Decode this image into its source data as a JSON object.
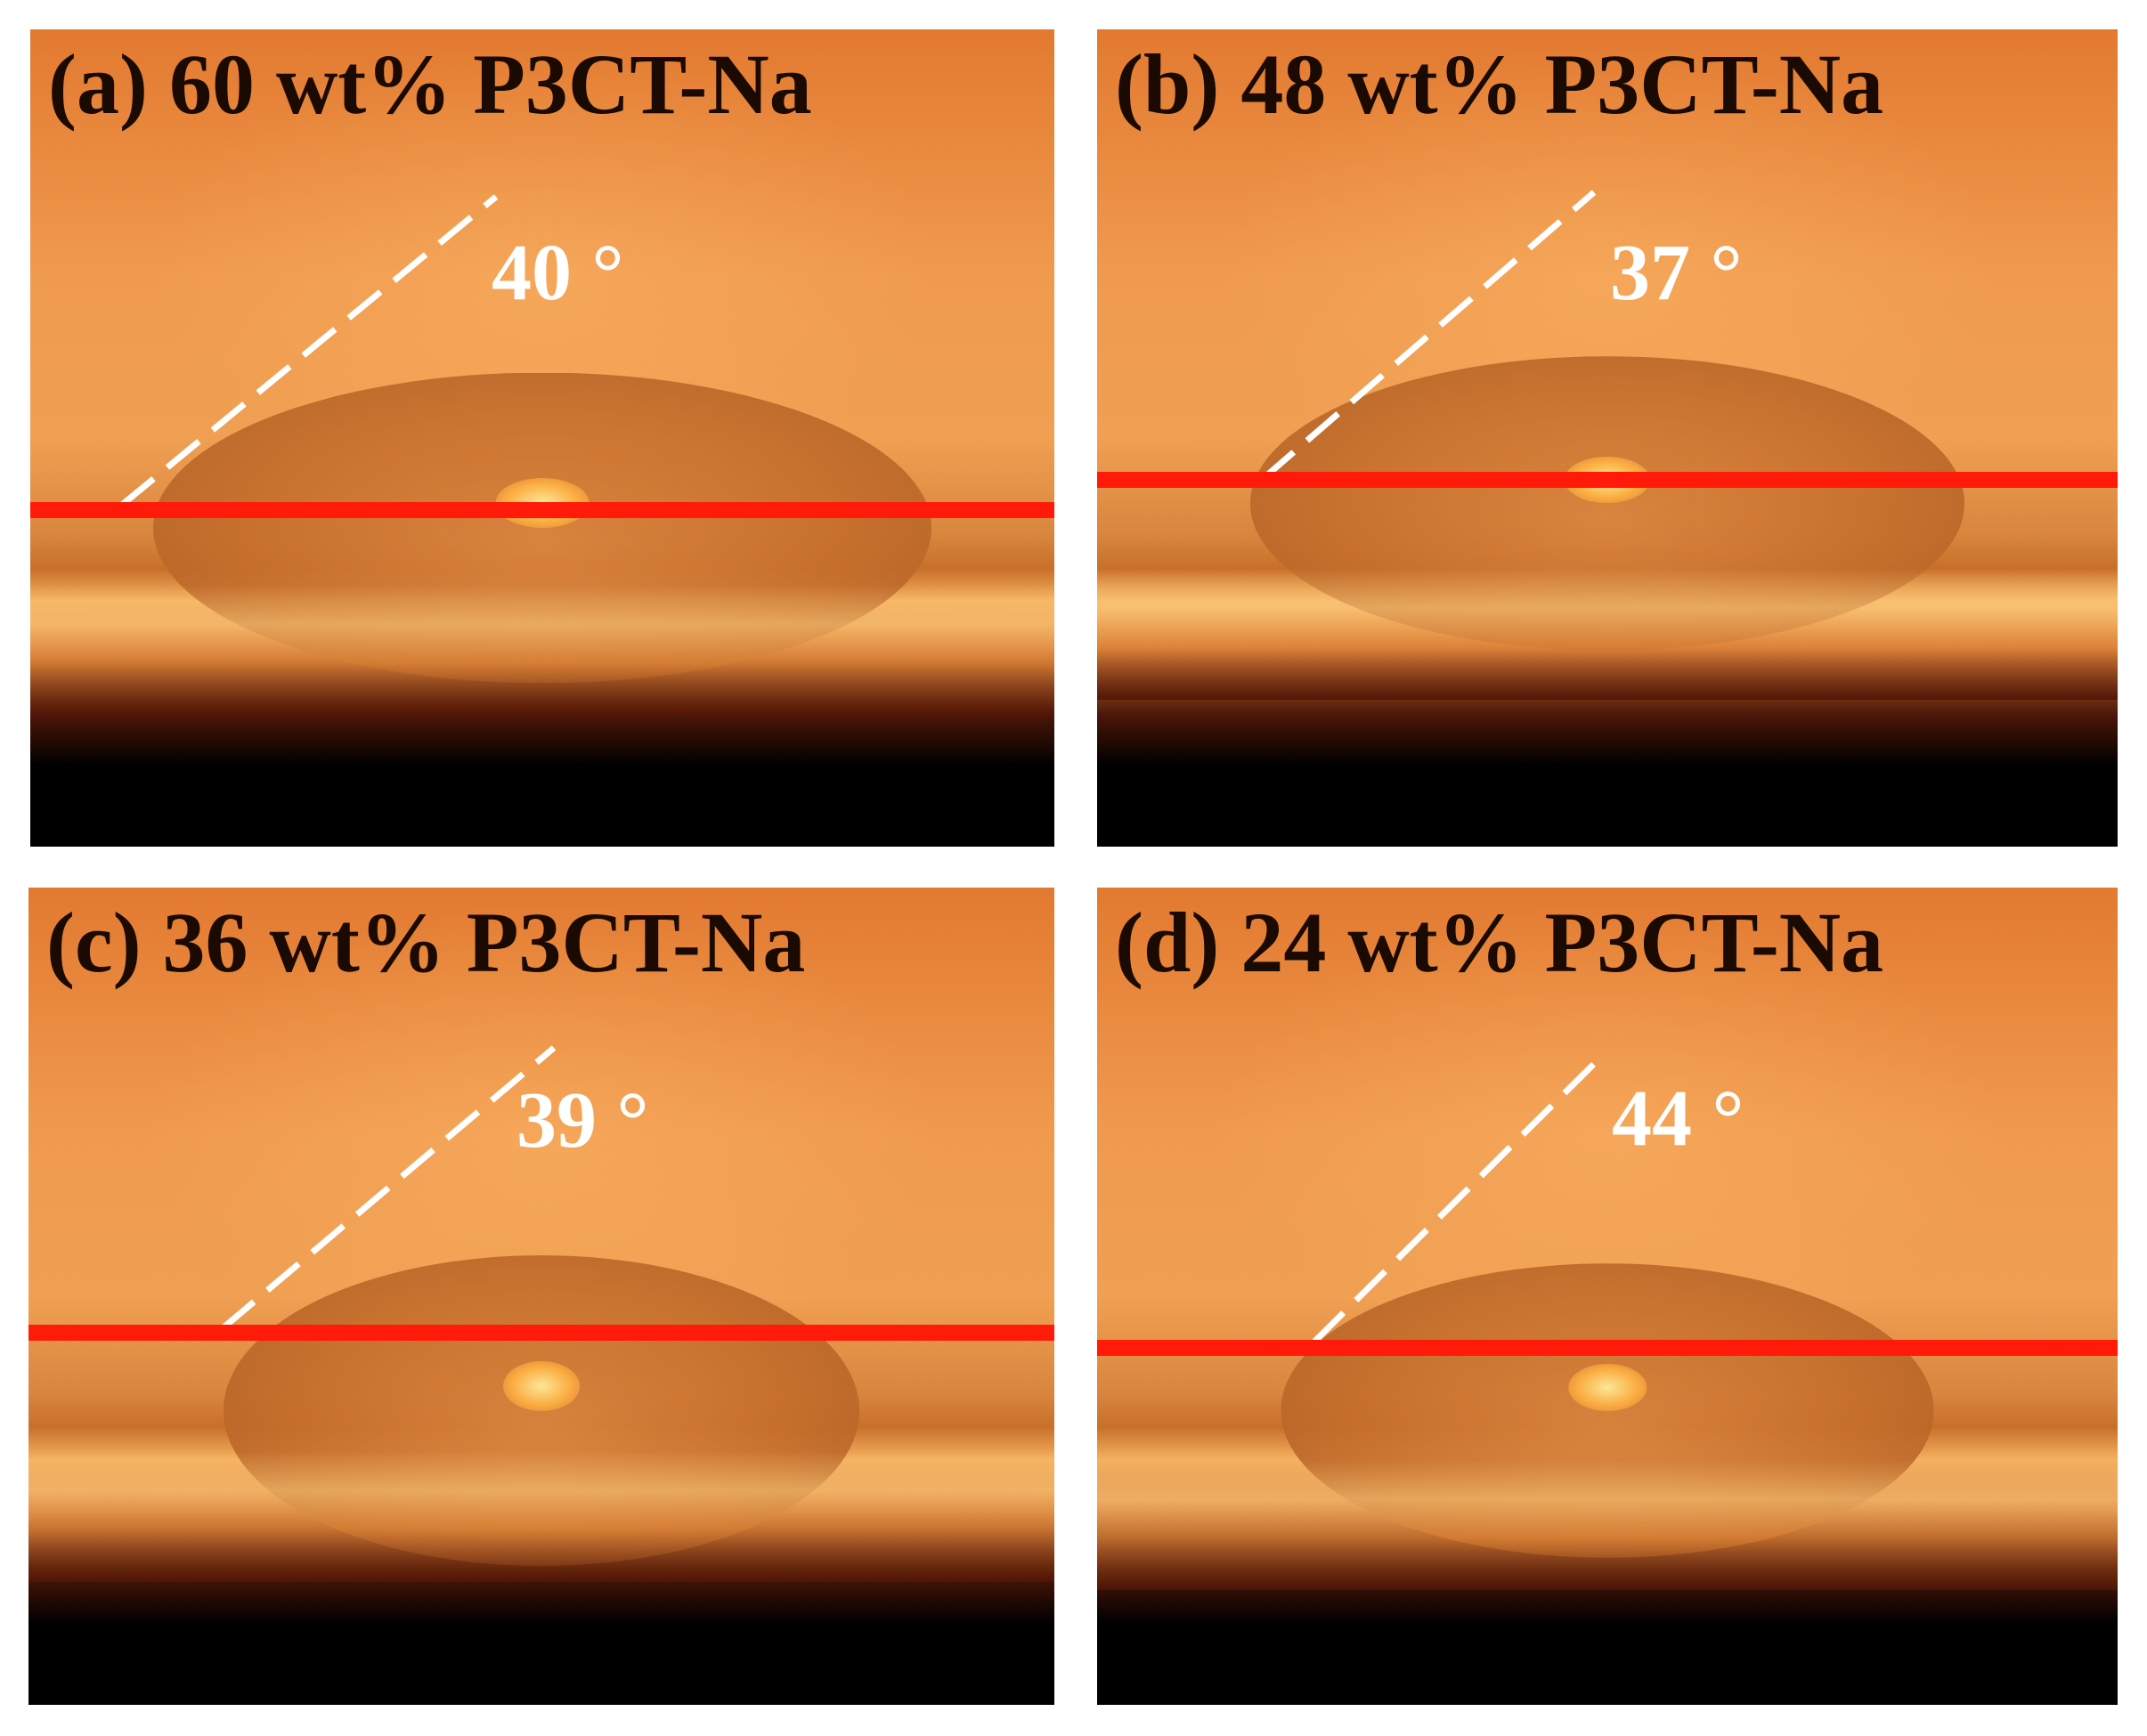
{
  "panels": [
    {
      "id": "a",
      "label": "(a) 60 wt% P3CT-Na",
      "angle": "40 °"
    },
    {
      "id": "b",
      "label": "(b) 48 wt% P3CT-Na",
      "angle": "37 °"
    },
    {
      "id": "c",
      "label": "(c) 36 wt% P3CT-Na",
      "angle": "39 °"
    },
    {
      "id": "d",
      "label": "(d) 24 wt% P3CT-Na",
      "angle": "44 °"
    }
  ],
  "colors": {
    "baseline": "#ff1a0a",
    "tangent": "#ffffff",
    "label_text": "#1a0a02",
    "angle_text": "#ffffff"
  }
}
